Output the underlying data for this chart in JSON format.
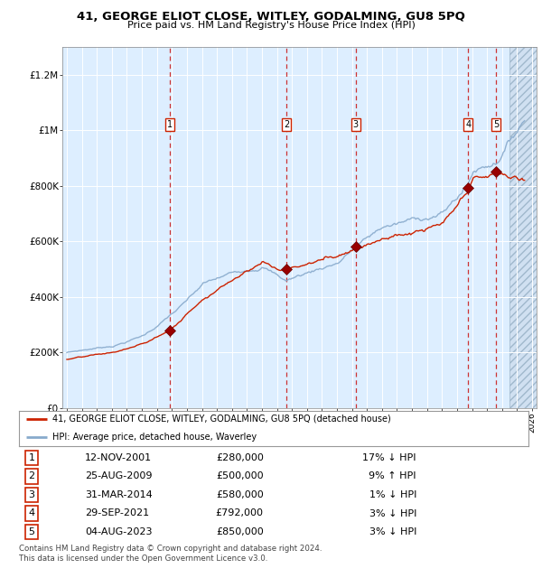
{
  "title": "41, GEORGE ELIOT CLOSE, WITLEY, GODALMING, GU8 5PQ",
  "subtitle": "Price paid vs. HM Land Registry's House Price Index (HPI)",
  "xlim_left": 1994.7,
  "xlim_right": 2026.3,
  "ylim": [
    0,
    1300000
  ],
  "yticks": [
    0,
    200000,
    400000,
    600000,
    800000,
    1000000,
    1200000
  ],
  "ytick_labels": [
    "£0",
    "£200K",
    "£400K",
    "£600K",
    "£800K",
    "£1M",
    "£1.2M"
  ],
  "background_color": "#ddeeff",
  "sale_dates_x": [
    2001.87,
    2009.65,
    2014.25,
    2021.75,
    2023.59
  ],
  "sale_prices_y": [
    280000,
    500000,
    580000,
    792000,
    850000
  ],
  "sale_labels": [
    "1",
    "2",
    "3",
    "4",
    "5"
  ],
  "sale_date_str": [
    "12-NOV-2001",
    "25-AUG-2009",
    "31-MAR-2014",
    "29-SEP-2021",
    "04-AUG-2023"
  ],
  "sale_price_str": [
    "£280,000",
    "£500,000",
    "£580,000",
    "£792,000",
    "£850,000"
  ],
  "sale_hpi_str": [
    "17% ↓ HPI",
    "9% ↑ HPI",
    "1% ↓ HPI",
    "3% ↓ HPI",
    "3% ↓ HPI"
  ],
  "legend_red": "41, GEORGE ELIOT CLOSE, WITLEY, GODALMING, GU8 5PQ (detached house)",
  "legend_blue": "HPI: Average price, detached house, Waverley",
  "footer": "Contains HM Land Registry data © Crown copyright and database right 2024.\nThis data is licensed under the Open Government Licence v3.0.",
  "red_line_color": "#cc2200",
  "blue_line_color": "#88aacc",
  "future_start": 2024.5
}
